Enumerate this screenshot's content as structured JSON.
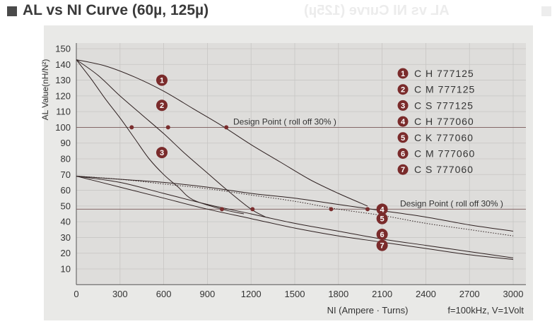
{
  "header": {
    "title": "AL vs NI Curve (60µ, 125µ)",
    "ghost": "AL vs NI Curve (125µ)"
  },
  "chart_data": {
    "type": "line",
    "xlabel": "NI (Ampere · Turns)",
    "ylabel": "AL Value(nH/N²)",
    "condition": "f=100kHz, V=1Volt",
    "xlim": [
      0,
      3000
    ],
    "ylim": [
      0,
      150
    ],
    "xticks": [
      0,
      300,
      600,
      900,
      1200,
      1500,
      1800,
      2100,
      2400,
      2700,
      3000
    ],
    "yticks": [
      10,
      20,
      30,
      40,
      50,
      60,
      70,
      80,
      90,
      100,
      110,
      120,
      130,
      140,
      150
    ],
    "grid": true,
    "reference_lines": [
      {
        "y": 100,
        "label": "Design Point ( roll off 30% )"
      },
      {
        "y": 48,
        "label": "Design Point ( roll off 30% )"
      }
    ],
    "legend": [
      {
        "num": "1",
        "label": "C H 777125"
      },
      {
        "num": "2",
        "label": "C M 777125"
      },
      {
        "num": "3",
        "label": "C S 777125"
      },
      {
        "num": "4",
        "label": "C H 777060"
      },
      {
        "num": "5",
        "label": "C K 777060"
      },
      {
        "num": "6",
        "label": "C M 777060"
      },
      {
        "num": "7",
        "label": "C S 777060"
      }
    ],
    "series": [
      {
        "name": "1",
        "dash": false,
        "x": [
          0,
          200,
          400,
          600,
          800,
          1000,
          1200,
          1400,
          1600,
          1800,
          2000
        ],
        "y": [
          143,
          139,
          132,
          123,
          112,
          101,
          89,
          78,
          67,
          58,
          50
        ]
      },
      {
        "name": "2",
        "dash": false,
        "x": [
          0,
          150,
          300,
          450,
          600,
          750,
          900,
          1050,
          1200,
          1300
        ],
        "y": [
          143,
          133,
          120,
          108,
          96,
          83,
          71,
          59,
          48,
          43
        ]
      },
      {
        "name": "3",
        "dash": false,
        "x": [
          0,
          100,
          200,
          300,
          400,
          500,
          600,
          700,
          800,
          1000,
          1150
        ],
        "y": [
          143,
          131,
          118,
          106,
          93,
          80,
          70,
          62,
          54,
          48,
          45
        ]
      },
      {
        "name": "4",
        "dash": false,
        "x": [
          0,
          300,
          600,
          900,
          1200,
          1500,
          1800,
          2100,
          2400,
          2700,
          3000
        ],
        "y": [
          69,
          67,
          65,
          62,
          58,
          55,
          51,
          47,
          43,
          38,
          34
        ]
      },
      {
        "name": "5",
        "dash": true,
        "x": [
          0,
          300,
          600,
          900,
          1200,
          1500,
          1800,
          2100,
          2400,
          2700,
          3000
        ],
        "y": [
          69,
          67,
          64,
          61,
          57,
          53,
          48,
          44,
          39,
          35,
          31
        ]
      },
      {
        "name": "6",
        "dash": false,
        "x": [
          0,
          300,
          600,
          900,
          1200,
          1500,
          1800,
          2100,
          2400,
          2700,
          3000
        ],
        "y": [
          69,
          65,
          58,
          51,
          45,
          39,
          34,
          29,
          25,
          21,
          17
        ]
      },
      {
        "name": "7",
        "dash": false,
        "x": [
          0,
          300,
          600,
          900,
          1200,
          1500,
          1800,
          2100,
          2400,
          2700,
          3000
        ],
        "y": [
          69,
          62,
          55,
          48,
          42,
          36,
          31,
          27,
          23,
          19,
          16
        ]
      }
    ],
    "design_points": [
      {
        "x": 380,
        "y": 100
      },
      {
        "x": 630,
        "y": 100
      },
      {
        "x": 1030,
        "y": 100
      },
      {
        "x": 1000,
        "y": 48
      },
      {
        "x": 1210,
        "y": 48
      },
      {
        "x": 1750,
        "y": 48
      },
      {
        "x": 2000,
        "y": 48
      }
    ],
    "curve_labels": [
      {
        "num": "1",
        "x": 500,
        "y": 130
      },
      {
        "num": "2",
        "x": 500,
        "y": 114
      },
      {
        "num": "3",
        "x": 500,
        "y": 84
      },
      {
        "num": "4",
        "x": 2100,
        "y": 48
      },
      {
        "num": "5",
        "x": 2100,
        "y": 42
      },
      {
        "num": "6",
        "x": 2100,
        "y": 32
      },
      {
        "num": "7",
        "x": 2100,
        "y": 25
      }
    ]
  }
}
